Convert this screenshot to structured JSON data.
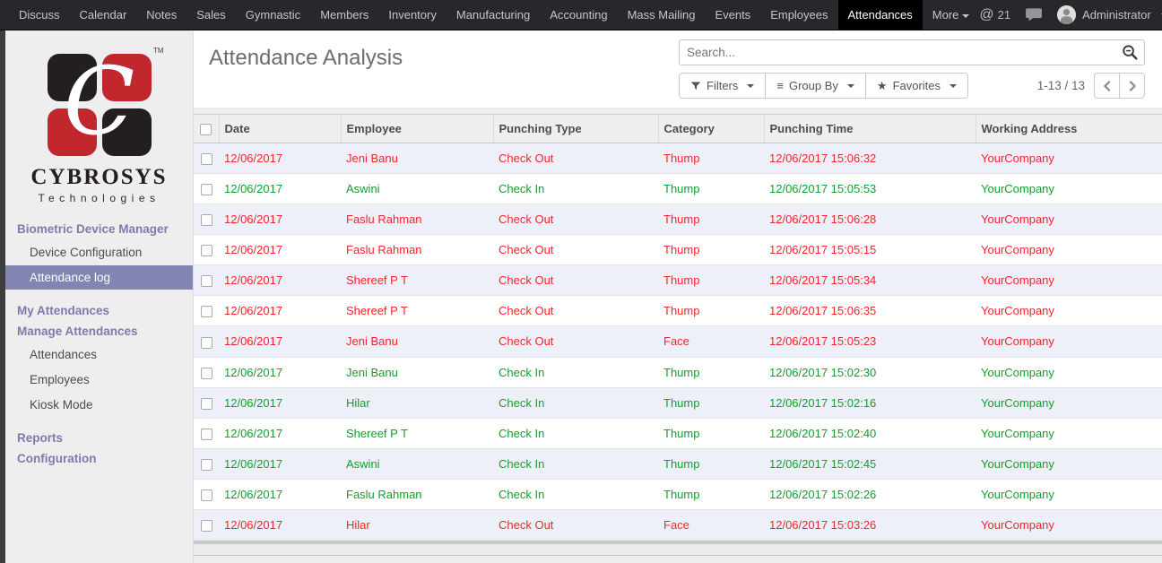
{
  "topnav": {
    "items": [
      {
        "label": "Discuss"
      },
      {
        "label": "Calendar"
      },
      {
        "label": "Notes"
      },
      {
        "label": "Sales"
      },
      {
        "label": "Gymnastic"
      },
      {
        "label": "Members"
      },
      {
        "label": "Inventory"
      },
      {
        "label": "Manufacturing"
      },
      {
        "label": "Accounting"
      },
      {
        "label": "Mass Mailing"
      },
      {
        "label": "Events"
      },
      {
        "label": "Employees"
      },
      {
        "label": "Attendances",
        "active": true
      },
      {
        "label": "More",
        "caret": true
      }
    ],
    "mention_count": "21",
    "user": "Administrator"
  },
  "sidebar": {
    "logo": {
      "brand": "CYBROSYS",
      "sub": "Technologies",
      "tm": "TM",
      "monogram": "C"
    },
    "sections": [
      {
        "type": "header",
        "label": "Biometric Device Manager",
        "gap": false
      },
      {
        "type": "item",
        "label": "Device Configuration"
      },
      {
        "type": "item",
        "label": "Attendance log",
        "selected": true
      },
      {
        "type": "header",
        "label": "My Attendances",
        "gap": true
      },
      {
        "type": "header",
        "label": "Manage Attendances",
        "gap": false
      },
      {
        "type": "item",
        "label": "Attendances"
      },
      {
        "type": "item",
        "label": "Employees"
      },
      {
        "type": "item",
        "label": "Kiosk Mode"
      },
      {
        "type": "header",
        "label": "Reports",
        "gap": true
      },
      {
        "type": "header",
        "label": "Configuration",
        "gap": false
      }
    ]
  },
  "control_panel": {
    "title": "Attendance Analysis",
    "search_placeholder": "Search...",
    "filters_label": "Filters",
    "group_by_label": "Group By",
    "favorites_label": "Favorites",
    "pager_text": "1-13 / 13"
  },
  "table": {
    "columns": [
      "Date",
      "Employee",
      "Punching Type",
      "Category",
      "Punching Time",
      "Working Address"
    ],
    "rows": [
      {
        "date": "12/06/2017",
        "employee": "Jeni Banu",
        "punching_type": "Check Out",
        "category": "Thump",
        "punching_time": "12/06/2017 15:06:32",
        "working_address": "YourCompany",
        "status": "out"
      },
      {
        "date": "12/06/2017",
        "employee": "Aswini",
        "punching_type": "Check In",
        "category": "Thump",
        "punching_time": "12/06/2017 15:05:53",
        "working_address": "YourCompany",
        "status": "in"
      },
      {
        "date": "12/06/2017",
        "employee": "Faslu Rahman",
        "punching_type": "Check Out",
        "category": "Thump",
        "punching_time": "12/06/2017 15:06:28",
        "working_address": "YourCompany",
        "status": "out"
      },
      {
        "date": "12/06/2017",
        "employee": "Faslu Rahman",
        "punching_type": "Check Out",
        "category": "Thump",
        "punching_time": "12/06/2017 15:05:15",
        "working_address": "YourCompany",
        "status": "out"
      },
      {
        "date": "12/06/2017",
        "employee": "Shereef P T",
        "punching_type": "Check Out",
        "category": "Thump",
        "punching_time": "12/06/2017 15:05:34",
        "working_address": "YourCompany",
        "status": "out"
      },
      {
        "date": "12/06/2017",
        "employee": "Shereef P T",
        "punching_type": "Check Out",
        "category": "Thump",
        "punching_time": "12/06/2017 15:06:35",
        "working_address": "YourCompany",
        "status": "out"
      },
      {
        "date": "12/06/2017",
        "employee": "Jeni Banu",
        "punching_type": "Check Out",
        "category": "Face",
        "punching_time": "12/06/2017 15:05:23",
        "working_address": "YourCompany",
        "status": "out"
      },
      {
        "date": "12/06/2017",
        "employee": "Jeni Banu",
        "punching_type": "Check In",
        "category": "Thump",
        "punching_time": "12/06/2017 15:02:30",
        "working_address": "YourCompany",
        "status": "in"
      },
      {
        "date": "12/06/2017",
        "employee": "Hilar",
        "punching_type": "Check In",
        "category": "Thump",
        "punching_time": "12/06/2017 15:02:16",
        "working_address": "YourCompany",
        "status": "in"
      },
      {
        "date": "12/06/2017",
        "employee": "Shereef P T",
        "punching_type": "Check In",
        "category": "Thump",
        "punching_time": "12/06/2017 15:02:40",
        "working_address": "YourCompany",
        "status": "in"
      },
      {
        "date": "12/06/2017",
        "employee": "Aswini",
        "punching_type": "Check In",
        "category": "Thump",
        "punching_time": "12/06/2017 15:02:45",
        "working_address": "YourCompany",
        "status": "in"
      },
      {
        "date": "12/06/2017",
        "employee": "Faslu Rahman",
        "punching_type": "Check In",
        "category": "Thump",
        "punching_time": "12/06/2017 15:02:26",
        "working_address": "YourCompany",
        "status": "in"
      },
      {
        "date": "12/06/2017",
        "employee": "Hilar",
        "punching_type": "Check Out",
        "category": "Face",
        "punching_time": "12/06/2017 15:03:26",
        "working_address": "YourCompany",
        "status": "out"
      }
    ]
  },
  "colors": {
    "danger": "#f0252b",
    "success": "#10a02e",
    "sidebar_accent": "#7c7bad",
    "selected_bg": "#8285b2",
    "navbar_bg": "#26282b",
    "logo_red": "#c1272d",
    "logo_black": "#231f20",
    "stripe_bg": "#eef0f9"
  },
  "icons": {
    "search": "search-icon",
    "filter": "filter-funnel-icon",
    "group": "group-by-icon",
    "star": "favorites-star-icon",
    "chat": "chat-bubble-icon",
    "mention": "at-mention-icon",
    "prev": "chevron-left-icon",
    "next": "chevron-right-icon"
  }
}
